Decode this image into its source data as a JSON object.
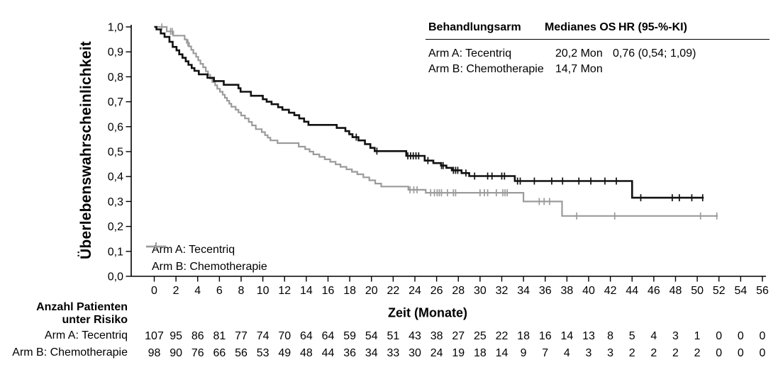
{
  "axes": {
    "ylabel": "Überlebenswahrscheinlichkeit",
    "xlabel": "Zeit (Monate)",
    "yticks": [
      "0,0",
      "0,1",
      "0,2",
      "0,3",
      "0,4",
      "0,5",
      "0,6",
      "0,7",
      "0,8",
      "0,9",
      "1,0"
    ],
    "xticks": [
      0,
      2,
      4,
      6,
      8,
      10,
      12,
      14,
      16,
      18,
      20,
      22,
      24,
      26,
      28,
      30,
      32,
      34,
      36,
      38,
      40,
      42,
      44,
      46,
      48,
      50,
      52,
      54,
      56
    ]
  },
  "legend": [
    {
      "label": "Arm A: Tecentriq",
      "color": "#111111"
    },
    {
      "label": "Arm B: Chemotherapie",
      "color": "#9b9b9b"
    }
  ],
  "stats_table": {
    "headers": [
      "Behandlungsarm",
      "Medianes OS",
      "HR (95-%-KI)"
    ],
    "rows": [
      {
        "arm": "Arm A: Tecentriq",
        "median_os": "20,2 Mon",
        "hr": "0,76 (0,54; 1,09)"
      },
      {
        "arm": "Arm B: Chemotherapie",
        "median_os": "14,7 Mon",
        "hr": ""
      }
    ]
  },
  "risk_table": {
    "header_line1": "Anzahl Patienten",
    "header_line2": "unter Risiko",
    "rows": [
      {
        "label": "Arm A: Tecentriq",
        "values": [
          107,
          95,
          86,
          81,
          77,
          74,
          70,
          64,
          64,
          59,
          54,
          51,
          43,
          38,
          27,
          25,
          22,
          18,
          16,
          14,
          13,
          8,
          5,
          4,
          3,
          1,
          0,
          0,
          0
        ]
      },
      {
        "label": "Arm B: Chemotherapie",
        "values": [
          98,
          90,
          76,
          66,
          56,
          53,
          49,
          48,
          44,
          36,
          34,
          33,
          30,
          24,
          19,
          18,
          14,
          9,
          7,
          4,
          3,
          3,
          2,
          2,
          2,
          2,
          0,
          0,
          0
        ]
      }
    ]
  },
  "chart_data": {
    "type": "line",
    "subtype": "kaplan_meier_step",
    "title": "",
    "xlabel": "Zeit (Monate)",
    "ylabel": "Überlebenswahrscheinlichkeit",
    "xlim": [
      0,
      56
    ],
    "ylim": [
      0,
      1
    ],
    "grid": false,
    "legend_position": "inside-lower-left",
    "series": [
      {
        "name": "Arm A: Tecentriq",
        "color": "#111111",
        "start": [
          0,
          1.0
        ],
        "steps": [
          [
            0.2,
            0.99
          ],
          [
            0.6,
            0.974
          ],
          [
            0.95,
            0.96
          ],
          [
            1.4,
            0.94
          ],
          [
            1.7,
            0.92
          ],
          [
            2.05,
            0.906
          ],
          [
            2.3,
            0.89
          ],
          [
            2.6,
            0.876
          ],
          [
            2.9,
            0.862
          ],
          [
            3.15,
            0.848
          ],
          [
            3.45,
            0.835
          ],
          [
            3.7,
            0.824
          ],
          [
            4.1,
            0.81
          ],
          [
            4.9,
            0.796
          ],
          [
            5.5,
            0.783
          ],
          [
            6.4,
            0.768
          ],
          [
            7.75,
            0.754
          ],
          [
            7.95,
            0.74
          ],
          [
            8.9,
            0.724
          ],
          [
            10.0,
            0.71
          ],
          [
            10.35,
            0.7
          ],
          [
            10.8,
            0.69
          ],
          [
            11.4,
            0.678
          ],
          [
            11.8,
            0.668
          ],
          [
            12.4,
            0.656
          ],
          [
            12.9,
            0.646
          ],
          [
            13.35,
            0.633
          ],
          [
            13.8,
            0.62
          ],
          [
            14.2,
            0.607
          ],
          [
            16.8,
            0.595
          ],
          [
            17.6,
            0.582
          ],
          [
            17.95,
            0.57
          ],
          [
            18.25,
            0.558
          ],
          [
            18.8,
            0.545
          ],
          [
            19.4,
            0.53
          ],
          [
            19.9,
            0.515
          ],
          [
            20.3,
            0.502
          ],
          [
            23.2,
            0.483
          ],
          [
            24.9,
            0.464
          ],
          [
            25.7,
            0.454
          ],
          [
            26.4,
            0.444
          ],
          [
            26.9,
            0.435
          ],
          [
            27.4,
            0.425
          ],
          [
            28.3,
            0.414
          ],
          [
            29.0,
            0.402
          ],
          [
            33.2,
            0.382
          ],
          [
            44.0,
            0.315
          ]
        ],
        "end_time": 50.6,
        "censor_times": [
          18.6,
          20.5,
          23.35,
          23.6,
          23.85,
          24.1,
          24.35,
          25.2,
          26.45,
          26.6,
          27.55,
          27.75,
          27.95,
          28.7,
          29.5,
          30.7,
          31.1,
          32.0,
          32.25,
          33.45,
          33.7,
          35.0,
          36.6,
          37.6,
          39.1,
          40.2,
          41.5,
          42.55,
          44.8,
          47.7,
          48.35,
          49.5,
          50.5
        ]
      },
      {
        "name": "Arm B: Chemotherapie",
        "color": "#9b9b9b",
        "start": [
          0,
          1.0
        ],
        "steps": [
          [
            1.15,
            0.982
          ],
          [
            1.75,
            0.965
          ],
          [
            2.8,
            0.95
          ],
          [
            3.0,
            0.936
          ],
          [
            3.2,
            0.922
          ],
          [
            3.4,
            0.908
          ],
          [
            3.6,
            0.894
          ],
          [
            3.85,
            0.88
          ],
          [
            4.05,
            0.866
          ],
          [
            4.25,
            0.852
          ],
          [
            4.5,
            0.838
          ],
          [
            4.75,
            0.822
          ],
          [
            4.95,
            0.808
          ],
          [
            5.15,
            0.793
          ],
          [
            5.35,
            0.779
          ],
          [
            5.6,
            0.766
          ],
          [
            5.8,
            0.752
          ],
          [
            6.05,
            0.74
          ],
          [
            6.3,
            0.728
          ],
          [
            6.5,
            0.716
          ],
          [
            6.7,
            0.704
          ],
          [
            6.9,
            0.692
          ],
          [
            7.1,
            0.68
          ],
          [
            7.5,
            0.668
          ],
          [
            7.75,
            0.657
          ],
          [
            8.0,
            0.645
          ],
          [
            8.35,
            0.633
          ],
          [
            8.7,
            0.619
          ],
          [
            9.0,
            0.605
          ],
          [
            9.35,
            0.59
          ],
          [
            9.9,
            0.578
          ],
          [
            10.2,
            0.566
          ],
          [
            10.45,
            0.556
          ],
          [
            10.7,
            0.545
          ],
          [
            11.35,
            0.534
          ],
          [
            13.3,
            0.52
          ],
          [
            13.9,
            0.51
          ],
          [
            14.3,
            0.5
          ],
          [
            14.65,
            0.489
          ],
          [
            15.2,
            0.479
          ],
          [
            15.7,
            0.469
          ],
          [
            16.2,
            0.459
          ],
          [
            16.7,
            0.449
          ],
          [
            17.15,
            0.439
          ],
          [
            17.7,
            0.429
          ],
          [
            18.2,
            0.419
          ],
          [
            18.7,
            0.409
          ],
          [
            19.25,
            0.397
          ],
          [
            19.8,
            0.385
          ],
          [
            20.35,
            0.372
          ],
          [
            20.9,
            0.36
          ],
          [
            23.4,
            0.347
          ],
          [
            25.0,
            0.335
          ],
          [
            34.0,
            0.3
          ],
          [
            37.55,
            0.242
          ]
        ],
        "end_time": 51.9,
        "censor_times": [
          0.7,
          1.5,
          1.65,
          3.1,
          23.55,
          23.9,
          24.2,
          25.45,
          25.8,
          26.05,
          26.25,
          26.45,
          27.0,
          27.55,
          27.75,
          30.0,
          30.4,
          30.7,
          31.5,
          32.1,
          32.3,
          32.5,
          35.45,
          35.9,
          36.4,
          38.9,
          42.4,
          50.3,
          51.8
        ]
      }
    ]
  }
}
